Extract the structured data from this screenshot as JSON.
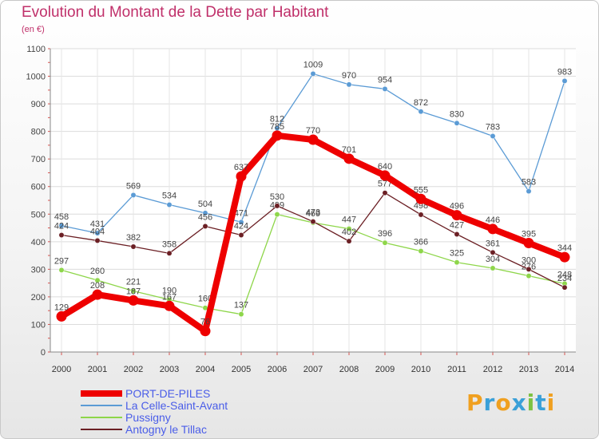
{
  "header": {
    "title": "Evolution du Montant de la Dette par Habitant",
    "unit": "(en €)"
  },
  "logo": {
    "letters": [
      "P",
      "r",
      "o",
      "x",
      "i",
      "t",
      "i"
    ],
    "colors": [
      "#f0a020",
      "#3aa0d8",
      "#f0a020",
      "#3aa0d8",
      "#7cc242",
      "#3aa0d8",
      "#f0a020"
    ]
  },
  "chart_data": {
    "type": "line",
    "title": "Evolution du Montant de la Dette par Habitant",
    "ylabel": "(en €)",
    "ylim": [
      0,
      1100
    ],
    "yticks": [
      0,
      100,
      200,
      300,
      400,
      500,
      600,
      700,
      800,
      900,
      1000,
      1100
    ],
    "x": [
      "2000",
      "2001",
      "2002",
      "2003",
      "2004",
      "2005",
      "2006",
      "2007",
      "2008",
      "2009",
      "2010",
      "2011",
      "2012",
      "2013",
      "2014"
    ],
    "legend_position": "bottom-left",
    "series": [
      {
        "name": "La Celle-Saint-Avant",
        "color": "#5b9bd5",
        "values": [
          458,
          431,
          569,
          534,
          504,
          471,
          812,
          1009,
          970,
          954,
          872,
          830,
          783,
          583,
          983
        ]
      },
      {
        "name": "Pussigny",
        "color": "#8ed64a",
        "values": [
          297,
          260,
          221,
          190,
          160,
          137,
          499,
          469,
          447,
          396,
          366,
          325,
          304,
          276,
          248
        ]
      },
      {
        "name": "Antogny le Tillac",
        "color": "#6b1f24",
        "values": [
          424,
          404,
          382,
          358,
          456,
          424,
          530,
          473,
          402,
          577,
          498,
          427,
          361,
          300,
          234
        ]
      },
      {
        "name": "PORT-DE-PILES",
        "color": "#ee0000",
        "values": [
          129,
          208,
          187,
          167,
          76,
          637,
          785,
          770,
          701,
          640,
          555,
          496,
          446,
          395,
          344
        ]
      }
    ]
  }
}
